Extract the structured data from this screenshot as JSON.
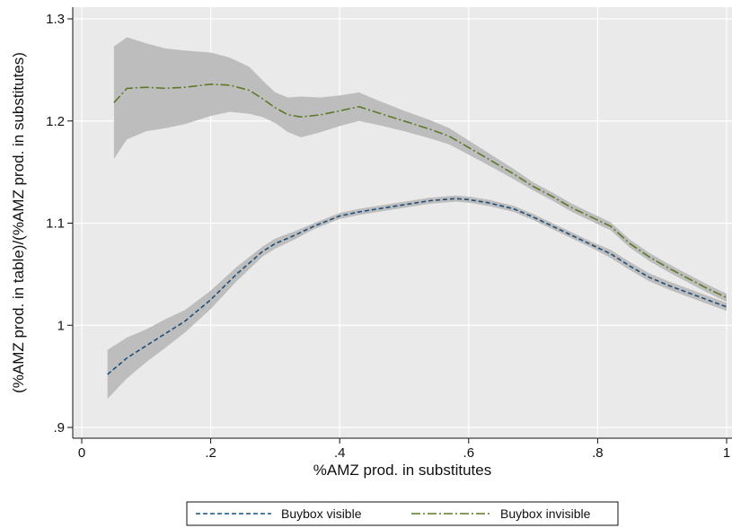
{
  "chart_data": {
    "type": "line",
    "title": "",
    "xlabel": "%AMZ prod. in substitutes",
    "ylabel": "(%AMZ prod. in table)/(%AMZ prod. in substitutes)",
    "xlim": [
      0,
      1
    ],
    "ylim": [
      0.9,
      1.3
    ],
    "x_ticks": [
      0,
      0.2,
      0.4,
      0.6,
      0.8,
      1
    ],
    "x_tick_labels": [
      "0",
      ".2",
      ".4",
      ".6",
      ".8",
      "1"
    ],
    "y_ticks": [
      0.9,
      1.0,
      1.1,
      1.2,
      1.3
    ],
    "y_tick_labels": [
      ".9",
      "1",
      "1.1",
      "1.2",
      "1.3"
    ],
    "grid": true,
    "legend_position": "bottom",
    "colors": {
      "plot_background": "#eaeaea",
      "gridline": "#ffffff",
      "confidence_band": "#bdbdbd"
    },
    "series": [
      {
        "name": "Buybox visible",
        "color": "#1f4e79",
        "dash": "dashed",
        "x": [
          0.04,
          0.07,
          0.1,
          0.13,
          0.16,
          0.2,
          0.24,
          0.28,
          0.3,
          0.33,
          0.36,
          0.4,
          0.43,
          0.47,
          0.5,
          0.54,
          0.58,
          0.6,
          0.63,
          0.67,
          0.7,
          0.73,
          0.76,
          0.79,
          0.82,
          0.85,
          0.88,
          0.91,
          0.94,
          0.97,
          1.0
        ],
        "y": [
          0.952,
          0.968,
          0.98,
          0.992,
          1.004,
          1.025,
          1.05,
          1.072,
          1.08,
          1.088,
          1.097,
          1.107,
          1.111,
          1.115,
          1.118,
          1.122,
          1.124,
          1.123,
          1.12,
          1.114,
          1.106,
          1.097,
          1.088,
          1.079,
          1.07,
          1.058,
          1.047,
          1.039,
          1.032,
          1.025,
          1.018
        ],
        "ci_lower": [
          0.928,
          0.948,
          0.964,
          0.978,
          0.993,
          1.016,
          1.043,
          1.067,
          1.075,
          1.084,
          1.094,
          1.104,
          1.108,
          1.112,
          1.115,
          1.119,
          1.121,
          1.12,
          1.117,
          1.111,
          1.103,
          1.094,
          1.085,
          1.076,
          1.066,
          1.054,
          1.043,
          1.035,
          1.028,
          1.021,
          1.014
        ],
        "ci_upper": [
          0.976,
          0.988,
          0.996,
          1.006,
          1.015,
          1.034,
          1.057,
          1.077,
          1.085,
          1.092,
          1.1,
          1.11,
          1.114,
          1.118,
          1.121,
          1.125,
          1.127,
          1.126,
          1.123,
          1.117,
          1.109,
          1.1,
          1.091,
          1.082,
          1.074,
          1.062,
          1.051,
          1.043,
          1.036,
          1.029,
          1.022
        ]
      },
      {
        "name": "Buybox invisible",
        "color": "#5a7a28",
        "dash": "dash-dot",
        "x": [
          0.05,
          0.07,
          0.1,
          0.13,
          0.16,
          0.2,
          0.23,
          0.26,
          0.28,
          0.3,
          0.32,
          0.34,
          0.37,
          0.4,
          0.43,
          0.46,
          0.5,
          0.54,
          0.57,
          0.6,
          0.63,
          0.67,
          0.7,
          0.73,
          0.76,
          0.79,
          0.82,
          0.85,
          0.88,
          0.91,
          0.94,
          0.97,
          1.0
        ],
        "y": [
          1.218,
          1.232,
          1.233,
          1.232,
          1.233,
          1.236,
          1.235,
          1.23,
          1.222,
          1.213,
          1.206,
          1.204,
          1.206,
          1.21,
          1.214,
          1.208,
          1.2,
          1.192,
          1.185,
          1.174,
          1.163,
          1.148,
          1.136,
          1.126,
          1.115,
          1.106,
          1.097,
          1.08,
          1.067,
          1.056,
          1.046,
          1.036,
          1.027
        ],
        "ci_lower": [
          1.163,
          1.182,
          1.19,
          1.193,
          1.197,
          1.205,
          1.209,
          1.207,
          1.204,
          1.198,
          1.189,
          1.184,
          1.189,
          1.195,
          1.2,
          1.196,
          1.19,
          1.183,
          1.177,
          1.167,
          1.157,
          1.143,
          1.132,
          1.122,
          1.111,
          1.102,
          1.093,
          1.076,
          1.063,
          1.052,
          1.042,
          1.032,
          1.023
        ],
        "ci_upper": [
          1.273,
          1.282,
          1.276,
          1.271,
          1.269,
          1.267,
          1.262,
          1.253,
          1.24,
          1.228,
          1.223,
          1.224,
          1.223,
          1.225,
          1.228,
          1.22,
          1.21,
          1.201,
          1.193,
          1.181,
          1.169,
          1.153,
          1.14,
          1.13,
          1.119,
          1.11,
          1.101,
          1.084,
          1.071,
          1.06,
          1.05,
          1.04,
          1.031
        ]
      }
    ]
  }
}
